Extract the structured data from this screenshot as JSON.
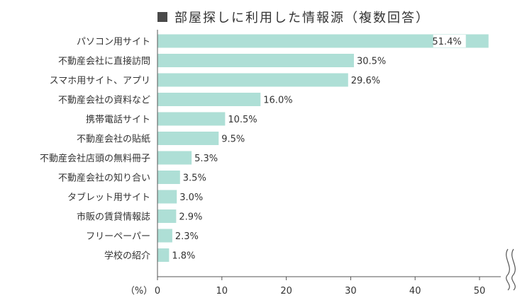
{
  "chart_data": {
    "type": "bar",
    "orientation": "horizontal",
    "title": "部屋探しに利用した情報源（複数回答）",
    "categories": [
      "パソコン用サイト",
      "不動産会社に直接訪問",
      "スマホ用サイト、アプリ",
      "不動産会社の資料など",
      "携帯電話サイト",
      "不動産会社の貼紙",
      "不動産会社店頭の無料冊子",
      "不動産会社の知り合い",
      "タブレット用サイト",
      "市販の賃貸情報誌",
      "フリーペーパー",
      "学校の紹介"
    ],
    "values": [
      51.4,
      30.5,
      29.6,
      16.0,
      10.5,
      9.5,
      5.3,
      3.5,
      3.0,
      2.9,
      2.3,
      1.8
    ],
    "value_labels": [
      "51.4%",
      "30.5%",
      "29.6%",
      "16.0%",
      "10.5%",
      "9.5%",
      "5.3%",
      "3.5%",
      "3.0%",
      "2.9%",
      "2.3%",
      "1.8%"
    ],
    "x_unit_label": "（%）",
    "x_ticks": [
      0,
      10,
      20,
      30,
      40,
      50
    ],
    "xlim": [
      0,
      50
    ],
    "axis_break": true,
    "grid": false,
    "bar_color": "#aedfd6",
    "title_marker_color": "#4a4a4a",
    "text_color": "#333333",
    "axis_color": "#555555"
  }
}
